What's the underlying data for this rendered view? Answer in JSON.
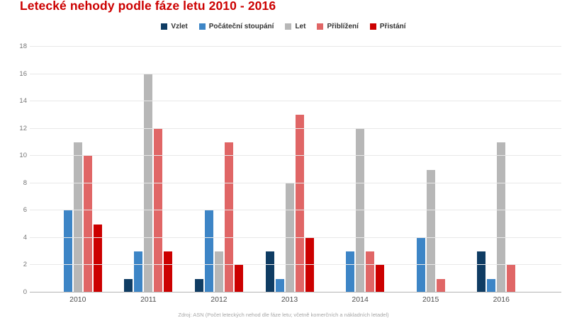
{
  "title": "Letecké nehody podle fáze letu 2010 - 2016",
  "source_note": "Zdroj: ASN (Počet leteckých nehod dle fáze letu; včetně komerčních a nákladních letadel)",
  "colors": {
    "title": "#cc0000",
    "gridline": "#e8e8e8",
    "baseline": "#b3b3b3",
    "y_tick_text": "#757575",
    "x_tick_text": "#4d4d4d",
    "legend_text": "#333333"
  },
  "chart_data": {
    "type": "bar",
    "title": "Letecké nehody podle fáze letu 2010 - 2016",
    "categories": [
      "2010",
      "2011",
      "2012",
      "2013",
      "2014",
      "2015",
      "2016"
    ],
    "series": [
      {
        "name": "Vzlet",
        "color": "#0f3c63",
        "values": [
          0,
          1,
          1,
          3,
          0,
          0,
          3
        ]
      },
      {
        "name": "Počáteční stoupání",
        "color": "#3d85c6",
        "values": [
          6,
          3,
          6,
          1,
          3,
          4,
          1
        ]
      },
      {
        "name": "Let",
        "color": "#b7b7b7",
        "values": [
          11,
          16,
          3,
          8,
          12,
          9,
          11
        ]
      },
      {
        "name": "Přiblížení",
        "color": "#e06666",
        "values": [
          10,
          12,
          11,
          13,
          3,
          1,
          2
        ]
      },
      {
        "name": "Přistání",
        "color": "#cc0000",
        "values": [
          5,
          3,
          2,
          4,
          2,
          0,
          0
        ]
      }
    ],
    "xlabel": "",
    "ylabel": "",
    "ylim": [
      0,
      18
    ],
    "ytick_step": 2,
    "grid": true,
    "legend_position": "top-center"
  }
}
